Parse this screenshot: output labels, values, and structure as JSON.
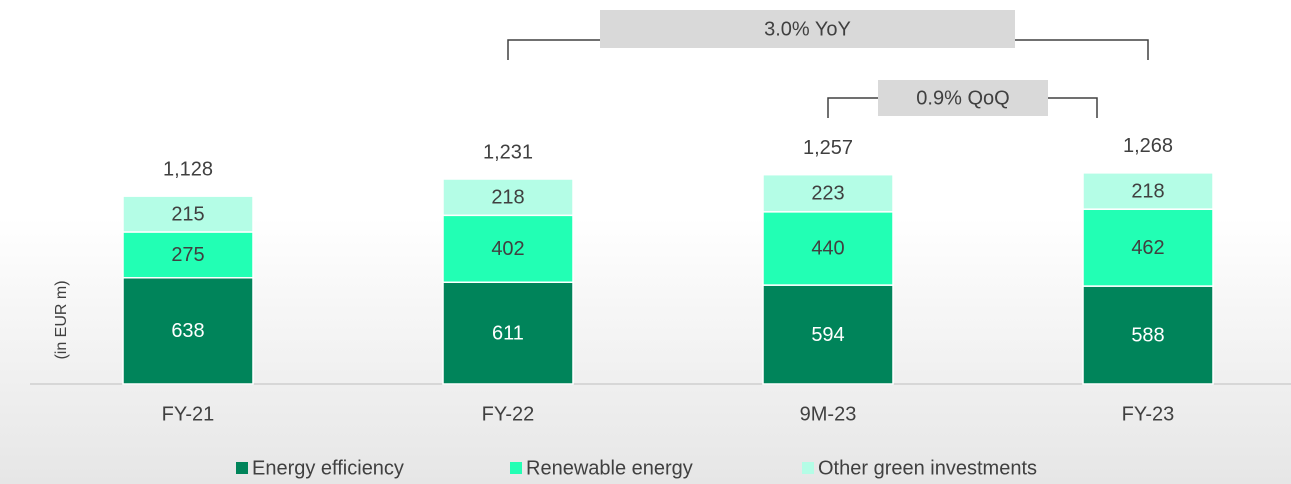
{
  "chart_data": {
    "type": "stacked_bar",
    "y_label": "(in EUR m)",
    "categories": [
      "FY-21",
      "FY-22",
      "9M-23",
      "FY-23"
    ],
    "series": [
      {
        "name": "Energy efficiency",
        "color": "#00845a",
        "values": [
          638,
          611,
          594,
          588
        ]
      },
      {
        "name": "Renewable energy",
        "color": "#22ffb4",
        "values": [
          275,
          402,
          440,
          462
        ]
      },
      {
        "name": "Other green investments",
        "color": "#b4fde6",
        "values": [
          215,
          218,
          223,
          218
        ]
      }
    ],
    "totals": [
      1128,
      1231,
      1257,
      1268
    ],
    "total_labels": [
      "1,128",
      "1,231",
      "1,257",
      "1,268"
    ],
    "ylim": [
      0,
      2300
    ],
    "annotations": [
      {
        "text": "3.0% YoY",
        "from": "FY-22",
        "to": "FY-23"
      },
      {
        "text": "0.9% QoQ",
        "from": "9M-23",
        "to": "FY-23"
      }
    ],
    "legend": "bottom"
  }
}
